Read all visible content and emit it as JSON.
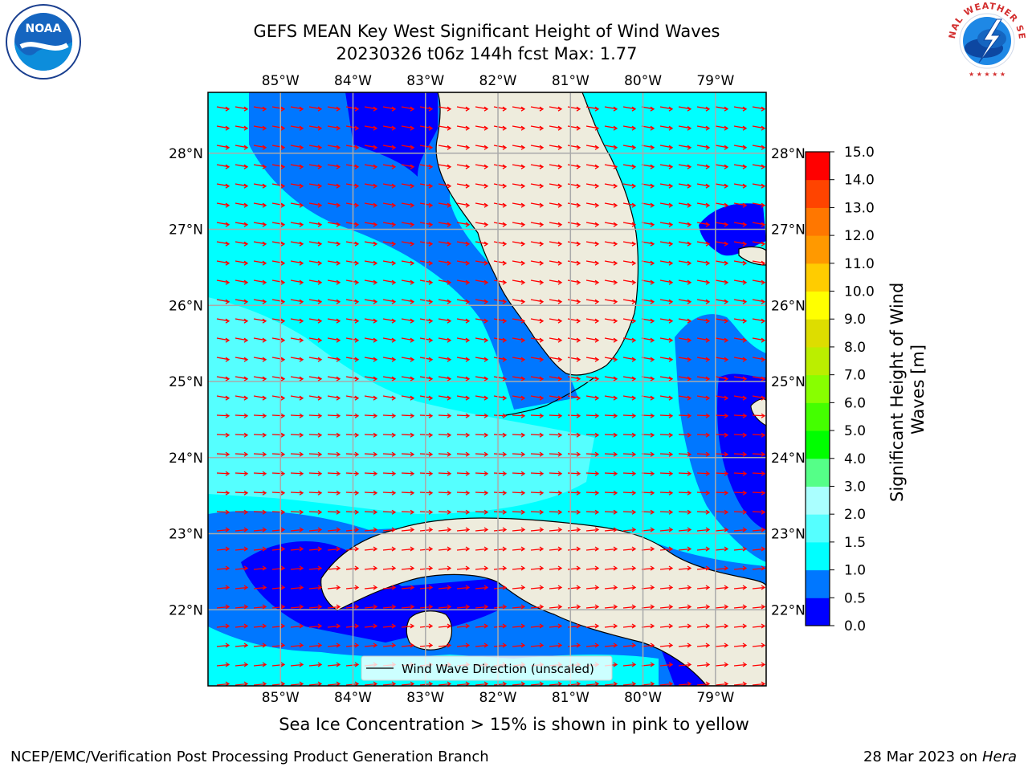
{
  "header": {
    "title_line1": "GEFS MEAN Key West Significant Height of Wind Waves",
    "title_line2": "20230326 t06z 144h fcst   Max: 1.77"
  },
  "logos": {
    "left": {
      "text": "NOAA",
      "ring": "NATIONAL OCEANIC AND ATMOSPHERIC ADMINISTRATION · U.S. DEPARTMENT OF COMMERCE"
    },
    "right": {
      "ring": "NATIONAL WEATHER SERVICE"
    }
  },
  "map": {
    "lon_labels": [
      "85°W",
      "84°W",
      "83°W",
      "82°W",
      "81°W",
      "80°W",
      "79°W"
    ],
    "lat_labels": [
      "28°N",
      "27°N",
      "26°N",
      "25°N",
      "24°N",
      "23°N",
      "22°N"
    ],
    "legend_label": "Wind Wave Direction (unscaled)"
  },
  "colorbar": {
    "label": "Significant Height of Wind Waves [m]",
    "label_line1": "Significant Height of Wind",
    "label_line2": "Waves [m]",
    "ticks": [
      "0.0",
      "0.5",
      "1.0",
      "1.5",
      "2.0",
      "3.0",
      "4.0",
      "5.0",
      "6.0",
      "7.0",
      "8.0",
      "9.0",
      "10.0",
      "11.0",
      "12.0",
      "13.0",
      "14.0",
      "15.0"
    ],
    "colors": [
      "#0000ff",
      "#0077ff",
      "#00ffff",
      "#55ffff",
      "#aaffff",
      "#55ff88",
      "#00ff00",
      "#44ff00",
      "#88ff00",
      "#bbee00",
      "#dddd00",
      "#ffff00",
      "#ffcc00",
      "#ff9900",
      "#ff7700",
      "#ff4400",
      "#ff0000"
    ]
  },
  "footer": {
    "note": "Sea Ice Concentration > 15% is shown in pink to yellow",
    "left": "NCEP/EMC/Verification Post Processing Product Generation Branch",
    "right_date": "28 Mar 2023 on",
    "right_host": "Hera"
  }
}
